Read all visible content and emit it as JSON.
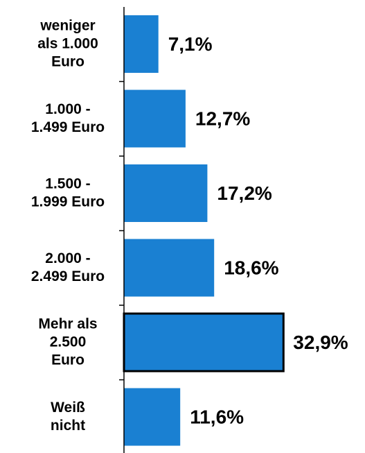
{
  "chart_data": {
    "type": "bar",
    "orientation": "horizontal",
    "categories": [
      "weniger\nals 1.000\nEuro",
      "1.000 -\n1.499 Euro",
      "1.500 -\n1.999 Euro",
      "2.000 -\n2.499 Euro",
      "Mehr als\n2.500\nEuro",
      "Weiß\nnicht"
    ],
    "values": [
      7.1,
      12.7,
      17.2,
      18.6,
      32.9,
      11.6
    ],
    "value_labels": [
      "7,1%",
      "12,7%",
      "17,2%",
      "18,6%",
      "32,9%",
      "11,6%"
    ],
    "color": "#1a80d2",
    "highlight": 4
  }
}
